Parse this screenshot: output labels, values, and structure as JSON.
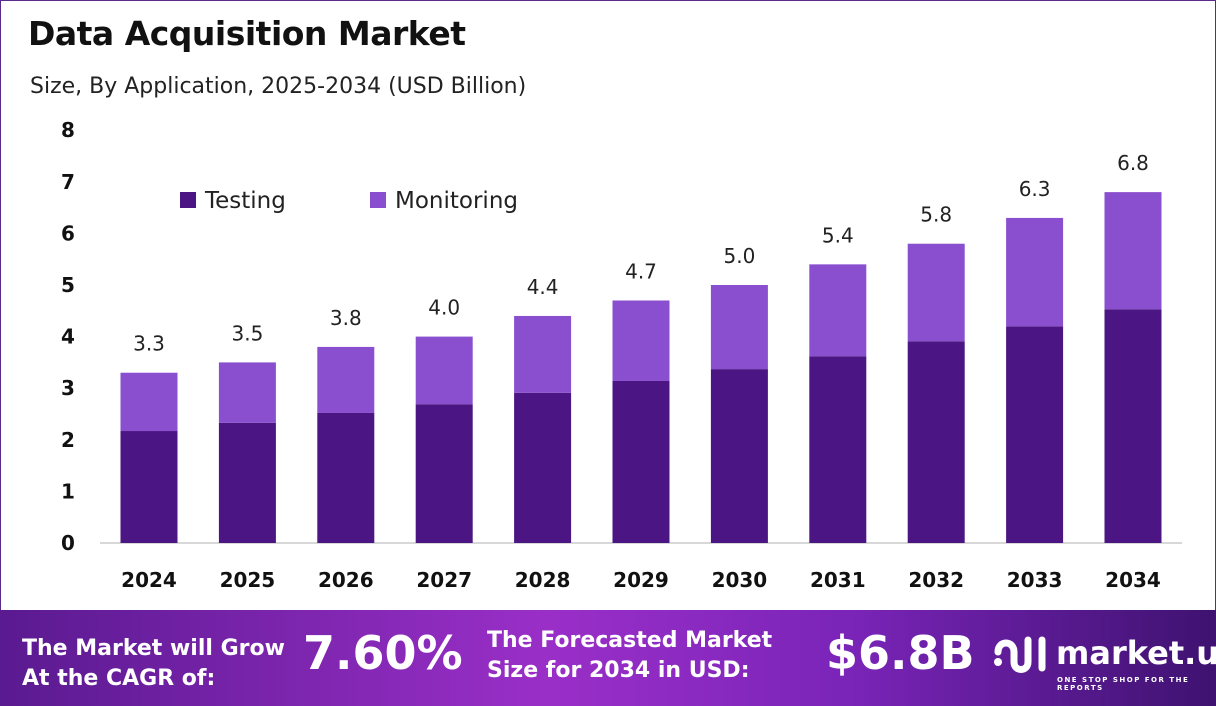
{
  "chart_data": {
    "type": "bar",
    "stacked": true,
    "title": "Data Acquisition Market",
    "subtitle": "Size, By Application, 2025-2034 (USD Billion)",
    "categories": [
      "2024",
      "2025",
      "2026",
      "2027",
      "2028",
      "2029",
      "2030",
      "2031",
      "2032",
      "2033",
      "2034"
    ],
    "series": [
      {
        "name": "Testing",
        "color": "#4b1583",
        "values": [
          2.17,
          2.33,
          2.52,
          2.69,
          2.91,
          3.14,
          3.37,
          3.62,
          3.91,
          4.2,
          4.53
        ]
      },
      {
        "name": "Monitoring",
        "color": "#8a4fcf",
        "values": [
          1.13,
          1.17,
          1.28,
          1.31,
          1.49,
          1.56,
          1.63,
          1.78,
          1.89,
          2.1,
          2.27
        ]
      }
    ],
    "totals": [
      "3.3",
      "3.5",
      "3.8",
      "4.0",
      "4.4",
      "4.7",
      "5.0",
      "5.4",
      "5.8",
      "6.3",
      "6.8"
    ],
    "yticks": [
      "0",
      "1",
      "2",
      "3",
      "4",
      "5",
      "6",
      "7",
      "8"
    ],
    "ylim": [
      0,
      8
    ],
    "grid": false,
    "legend_placement": "top-left"
  },
  "banner": {
    "cagr_label_line1": "The Market will Grow",
    "cagr_label_line2": "At the CAGR of:",
    "cagr_value": "7.60%",
    "forecast_label_line1": "The Forecasted Market",
    "forecast_label_line2": "Size for 2034 in USD:",
    "forecast_value": "$6.8B",
    "brand_name": "market.us",
    "brand_tagline": "ONE STOP SHOP FOR THE REPORTS"
  }
}
